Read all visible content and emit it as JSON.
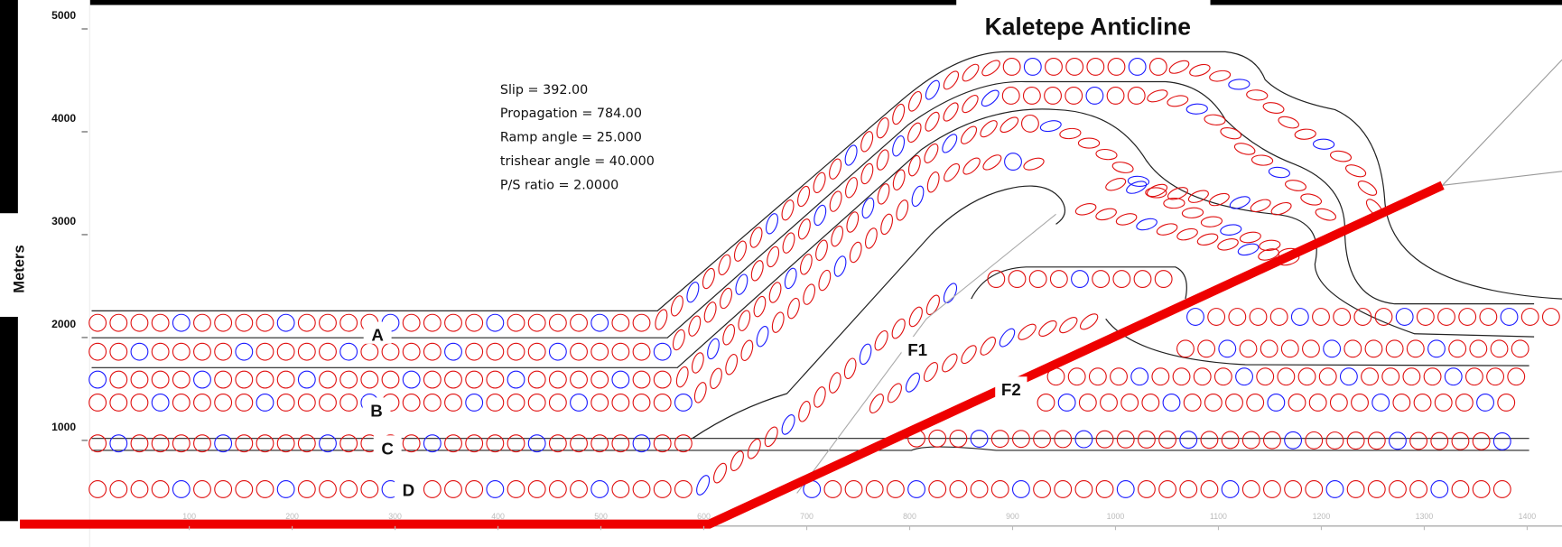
{
  "title": "Kaletepe Anticline",
  "axis": {
    "label": "Meters",
    "yticks": [
      1000,
      2000,
      3000,
      4000,
      5000
    ],
    "xticks": [
      100,
      200,
      300,
      400,
      500,
      600,
      700,
      800,
      900,
      1000,
      1100,
      1200,
      1300,
      1400
    ]
  },
  "parameters": [
    "Slip = 392.00",
    "Propagation = 784.00",
    "Ramp angle = 25.000",
    "trishear angle = 40.000",
    "P/S ratio = 2.0000"
  ],
  "layers": [
    "A",
    "B",
    "C",
    "D"
  ],
  "faults": [
    "F1",
    "F2"
  ]
}
